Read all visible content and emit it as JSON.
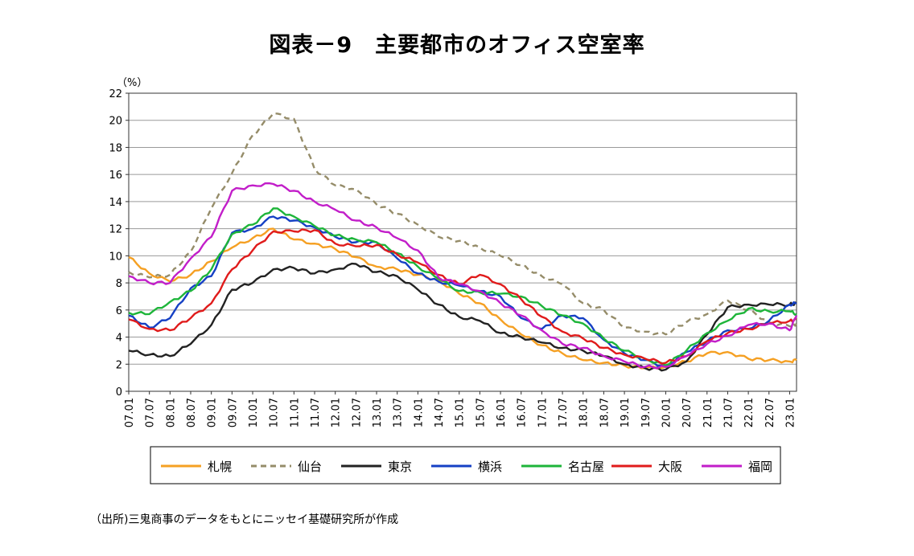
{
  "title": "図表－9　主要都市のオフィス空室率",
  "source": "（出所)三鬼商事のデータをもとにニッセイ基礎研究所が作成",
  "chart_data": {
    "type": "line",
    "ylabel": "（%）",
    "ylim": [
      0,
      22
    ],
    "yticks": [
      0,
      2,
      4,
      6,
      8,
      10,
      12,
      14,
      16,
      18,
      20,
      22
    ],
    "x_tick_labels": [
      "07.01",
      "07.07",
      "08.01",
      "08.07",
      "09.01",
      "09.07",
      "10.01",
      "10.07",
      "11.01",
      "11.07",
      "12.01",
      "12.07",
      "13.01",
      "13.07",
      "14.01",
      "14.07",
      "15.01",
      "15.07",
      "16.01",
      "16.07",
      "17.01",
      "17.07",
      "18.01",
      "18.07",
      "19.01",
      "19.07",
      "20.01",
      "20.07",
      "21.01",
      "21.07",
      "22.01",
      "22.07",
      "23.01"
    ],
    "x": [
      "07.01",
      "07.07",
      "08.01",
      "08.07",
      "09.01",
      "09.07",
      "10.01",
      "10.07",
      "11.01",
      "11.07",
      "12.01",
      "12.07",
      "13.01",
      "13.07",
      "14.01",
      "14.07",
      "15.01",
      "15.07",
      "16.01",
      "16.07",
      "17.01",
      "17.07",
      "18.01",
      "18.07",
      "19.01",
      "19.07",
      "20.01",
      "20.07",
      "21.01",
      "21.07",
      "22.01",
      "22.07",
      "23.01",
      "23.03"
    ],
    "grid": "horizontal",
    "legend_position": "bottom",
    "series": [
      {
        "name": "札幌",
        "color": "#f5a023",
        "dash": "solid",
        "values": [
          9.9,
          8.7,
          8.1,
          8.6,
          9.6,
          10.6,
          11.3,
          12.0,
          11.2,
          10.9,
          10.5,
          9.9,
          9.2,
          9.0,
          8.6,
          8.2,
          7.2,
          6.5,
          5.3,
          4.2,
          3.4,
          2.8,
          2.3,
          2.1,
          1.9,
          1.7,
          1.8,
          2.2,
          2.8,
          2.9,
          2.4,
          2.3,
          2.2,
          2.3
        ]
      },
      {
        "name": "仙台",
        "color": "#958c69",
        "dash": "7,5",
        "values": [
          8.8,
          8.4,
          8.6,
          10.3,
          13.5,
          16.1,
          18.9,
          20.5,
          20.1,
          16.4,
          15.2,
          14.9,
          13.8,
          13.1,
          12.3,
          11.4,
          11.1,
          10.6,
          10.0,
          9.3,
          8.5,
          7.9,
          6.5,
          6.0,
          4.7,
          4.4,
          4.2,
          5.1,
          5.7,
          6.7,
          6.0,
          5.1,
          4.8,
          5.0
        ]
      },
      {
        "name": "東京",
        "color": "#222222",
        "dash": "solid",
        "values": [
          3.0,
          2.7,
          2.6,
          3.5,
          4.9,
          7.5,
          8.0,
          9.0,
          9.1,
          8.7,
          9.0,
          9.4,
          8.8,
          8.5,
          7.5,
          6.4,
          5.5,
          5.2,
          4.3,
          4.0,
          3.6,
          3.2,
          3.0,
          2.6,
          2.0,
          1.7,
          1.6,
          2.2,
          4.2,
          6.2,
          6.4,
          6.4,
          6.4,
          6.5
        ]
      },
      {
        "name": "横浜",
        "color": "#1540c4",
        "dash": "solid",
        "values": [
          5.6,
          4.7,
          5.4,
          7.6,
          8.5,
          11.7,
          12.0,
          12.9,
          12.6,
          12.1,
          11.4,
          11.0,
          11.0,
          9.8,
          8.7,
          8.1,
          7.8,
          7.4,
          7.0,
          5.4,
          4.6,
          5.6,
          5.4,
          3.8,
          2.8,
          2.3,
          1.8,
          2.9,
          3.7,
          4.5,
          4.6,
          5.2,
          6.4,
          6.5
        ]
      },
      {
        "name": "名古屋",
        "color": "#1eb53a",
        "dash": "solid",
        "values": [
          5.8,
          5.7,
          6.6,
          7.4,
          9.0,
          11.6,
          12.3,
          13.5,
          12.9,
          12.2,
          11.5,
          11.2,
          11.0,
          10.2,
          9.2,
          8.3,
          7.4,
          7.3,
          7.2,
          7.0,
          6.3,
          5.6,
          5.0,
          3.9,
          3.0,
          2.4,
          1.9,
          3.0,
          4.3,
          5.2,
          6.1,
          5.9,
          5.9,
          5.7
        ]
      },
      {
        "name": "大阪",
        "color": "#e01b1b",
        "dash": "solid",
        "values": [
          5.3,
          4.6,
          4.5,
          5.4,
          6.5,
          9.0,
          10.4,
          11.8,
          11.8,
          11.9,
          10.9,
          10.7,
          10.8,
          10.1,
          9.5,
          8.6,
          7.9,
          8.6,
          7.9,
          6.8,
          5.5,
          4.4,
          3.9,
          3.2,
          2.7,
          2.4,
          2.1,
          2.6,
          3.7,
          4.3,
          4.6,
          5.0,
          5.2,
          5.3
        ]
      },
      {
        "name": "福岡",
        "color": "#c21ec9",
        "dash": "solid",
        "values": [
          8.5,
          8.0,
          8.0,
          9.8,
          11.4,
          14.8,
          15.2,
          15.3,
          14.8,
          14.0,
          13.4,
          12.6,
          12.1,
          11.3,
          10.4,
          8.4,
          7.9,
          7.4,
          6.5,
          5.6,
          4.5,
          3.5,
          3.2,
          2.6,
          2.2,
          1.8,
          1.8,
          2.6,
          3.5,
          4.1,
          4.9,
          5.0,
          4.5,
          5.6
        ]
      }
    ]
  }
}
